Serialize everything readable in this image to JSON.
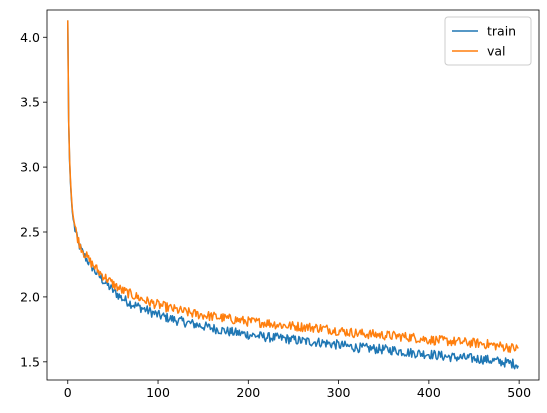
{
  "chart_data": {
    "type": "line",
    "title": "",
    "xlabel": "",
    "ylabel": "",
    "xlim": [
      -23,
      522
    ],
    "ylim": [
      1.36,
      4.21
    ],
    "xticks": [
      0,
      100,
      200,
      300,
      400,
      500
    ],
    "xtick_labels": [
      "0",
      "100",
      "200",
      "300",
      "400",
      "500"
    ],
    "yticks": [
      1.5,
      2.0,
      2.5,
      3.0,
      3.5,
      4.0
    ],
    "ytick_labels": [
      "1.5",
      "2.0",
      "2.5",
      "3.0",
      "3.5",
      "4.0"
    ],
    "grid": false,
    "legend_position": "top-right",
    "series": [
      {
        "name": "train",
        "color": "#1f77b4",
        "x": [
          0,
          1,
          2,
          3,
          4,
          5,
          6,
          8,
          10,
          12,
          15,
          18,
          20,
          25,
          30,
          35,
          40,
          50,
          60,
          70,
          80,
          90,
          100,
          120,
          140,
          160,
          180,
          200,
          220,
          240,
          260,
          280,
          300,
          320,
          340,
          360,
          380,
          400,
          420,
          440,
          460,
          480,
          490,
          499
        ],
        "y": [
          4.13,
          3.35,
          3.05,
          2.88,
          2.76,
          2.66,
          2.6,
          2.52,
          2.46,
          2.41,
          2.36,
          2.32,
          2.3,
          2.25,
          2.2,
          2.16,
          2.12,
          2.05,
          1.99,
          1.95,
          1.92,
          1.89,
          1.86,
          1.82,
          1.79,
          1.76,
          1.73,
          1.71,
          1.69,
          1.68,
          1.66,
          1.65,
          1.63,
          1.61,
          1.6,
          1.59,
          1.57,
          1.56,
          1.54,
          1.53,
          1.52,
          1.5,
          1.49,
          1.48
        ]
      },
      {
        "name": "val",
        "color": "#ff7f0e",
        "x": [
          0,
          1,
          2,
          3,
          4,
          5,
          6,
          8,
          10,
          12,
          15,
          18,
          20,
          25,
          30,
          35,
          40,
          50,
          60,
          70,
          80,
          90,
          100,
          120,
          140,
          160,
          180,
          200,
          220,
          240,
          260,
          280,
          300,
          320,
          340,
          360,
          380,
          400,
          420,
          440,
          460,
          480,
          490,
          499
        ],
        "y": [
          4.13,
          3.36,
          3.07,
          2.9,
          2.78,
          2.68,
          2.62,
          2.54,
          2.48,
          2.43,
          2.38,
          2.34,
          2.32,
          2.27,
          2.23,
          2.19,
          2.16,
          2.1,
          2.05,
          2.02,
          1.99,
          1.96,
          1.94,
          1.9,
          1.87,
          1.85,
          1.83,
          1.81,
          1.8,
          1.78,
          1.77,
          1.76,
          1.74,
          1.72,
          1.71,
          1.7,
          1.69,
          1.67,
          1.66,
          1.65,
          1.64,
          1.62,
          1.61,
          1.6
        ]
      }
    ]
  }
}
